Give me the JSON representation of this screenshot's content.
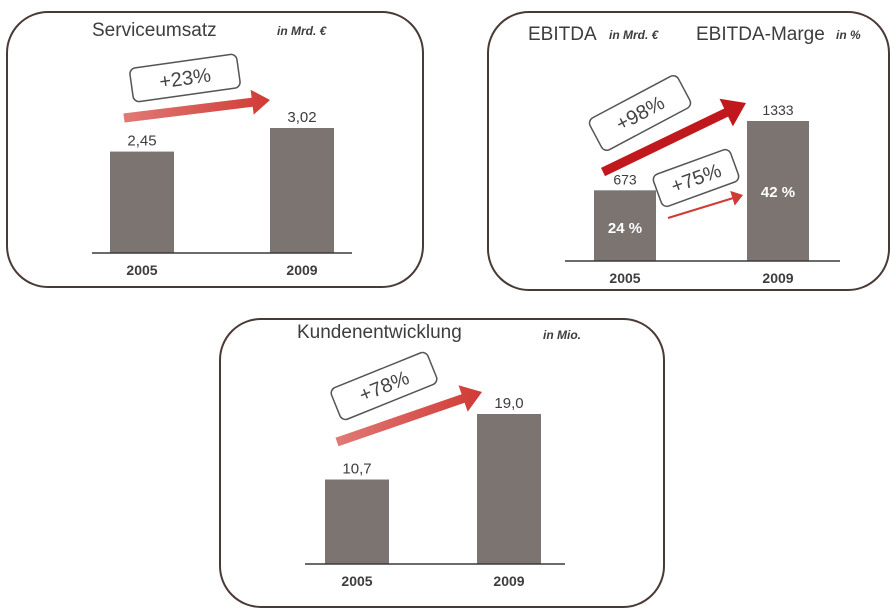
{
  "colors": {
    "bar": "#7b7470",
    "arrow": "#d13a35",
    "arrow_dark": "#c0181c",
    "border": "#4a3a36",
    "text": "#3d3d3d"
  },
  "chart_data": [
    {
      "type": "bar",
      "title": "Serviceumsatz",
      "unit": "in Mrd. €",
      "categories": [
        "2005",
        "2009"
      ],
      "values": [
        2.45,
        3.02
      ],
      "value_labels": [
        "2,45",
        "3,02"
      ],
      "annotations": [
        {
          "text": "+23%"
        }
      ]
    },
    {
      "type": "bar",
      "title": "EBITDA",
      "unit": "in Mrd. €",
      "title2": "EBITDA-Marge",
      "unit2": "in %",
      "categories": [
        "2005",
        "2009"
      ],
      "values": [
        673,
        1333
      ],
      "value_labels": [
        "673",
        "1333"
      ],
      "inner_labels": [
        "24 %",
        "42 %"
      ],
      "margin_values": [
        24,
        42
      ],
      "annotations": [
        {
          "text": "+98%"
        },
        {
          "text": "+75%"
        }
      ]
    },
    {
      "type": "bar",
      "title": "Kundenentwicklung",
      "unit": "in Mio.",
      "categories": [
        "2005",
        "2009"
      ],
      "values": [
        10.7,
        19.0
      ],
      "value_labels": [
        "10,7",
        "19,0"
      ],
      "annotations": [
        {
          "text": "+78%"
        }
      ]
    }
  ]
}
